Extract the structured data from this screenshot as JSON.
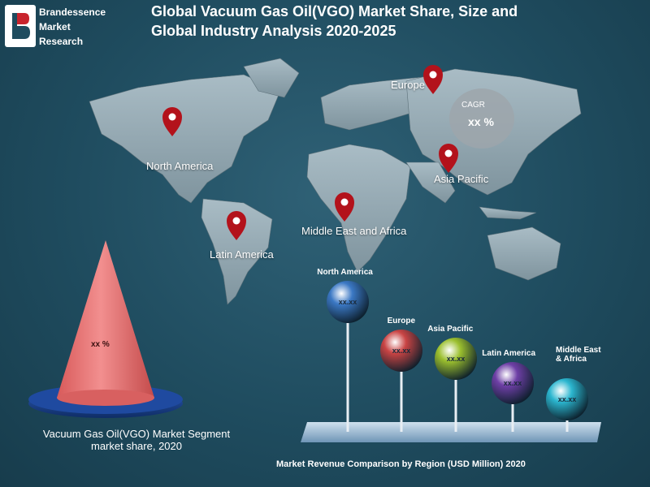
{
  "brand": {
    "line1": "Brandessence",
    "line2": "Market",
    "line3": "Research"
  },
  "title": {
    "line1": "Global Vacuum Gas Oil(VGO) Market Share, Size and",
    "line2": "Global Industry Analysis 2020-2025"
  },
  "map": {
    "regions": [
      {
        "label": "North America"
      },
      {
        "label": "Latin America"
      },
      {
        "label": "Europe"
      },
      {
        "label": "Middle East and Africa"
      },
      {
        "label": "Asia Pacific"
      }
    ],
    "cagr_label": "CAGR",
    "cagr_value": "xx %"
  },
  "cone": {
    "value": "xx %",
    "caption_line1": "Vacuum Gas Oil(VGO)  Market Segment",
    "caption_line2": "market share, 2020"
  },
  "chart_data": {
    "type": "bar",
    "title": "Market Revenue Comparison by Region (USD Million) 2020",
    "categories": [
      "North America",
      "Europe",
      "Asia Pacific",
      "Latin America",
      "Middle East & Africa"
    ],
    "value_labels": [
      "xx.xx",
      "xx.xx",
      "xx.xx",
      "xx.xx",
      "xx.xx"
    ],
    "colors": [
      "#3b78c4",
      "#c94444",
      "#9bbf2e",
      "#6e3fa6",
      "#2bb6cf"
    ]
  },
  "colors": {
    "background": "#1f4c5f",
    "map_land": "#8fa3ad",
    "pin": "#b3121b",
    "cone": "#e06b6b",
    "cone_base": "#1c3f8a"
  }
}
